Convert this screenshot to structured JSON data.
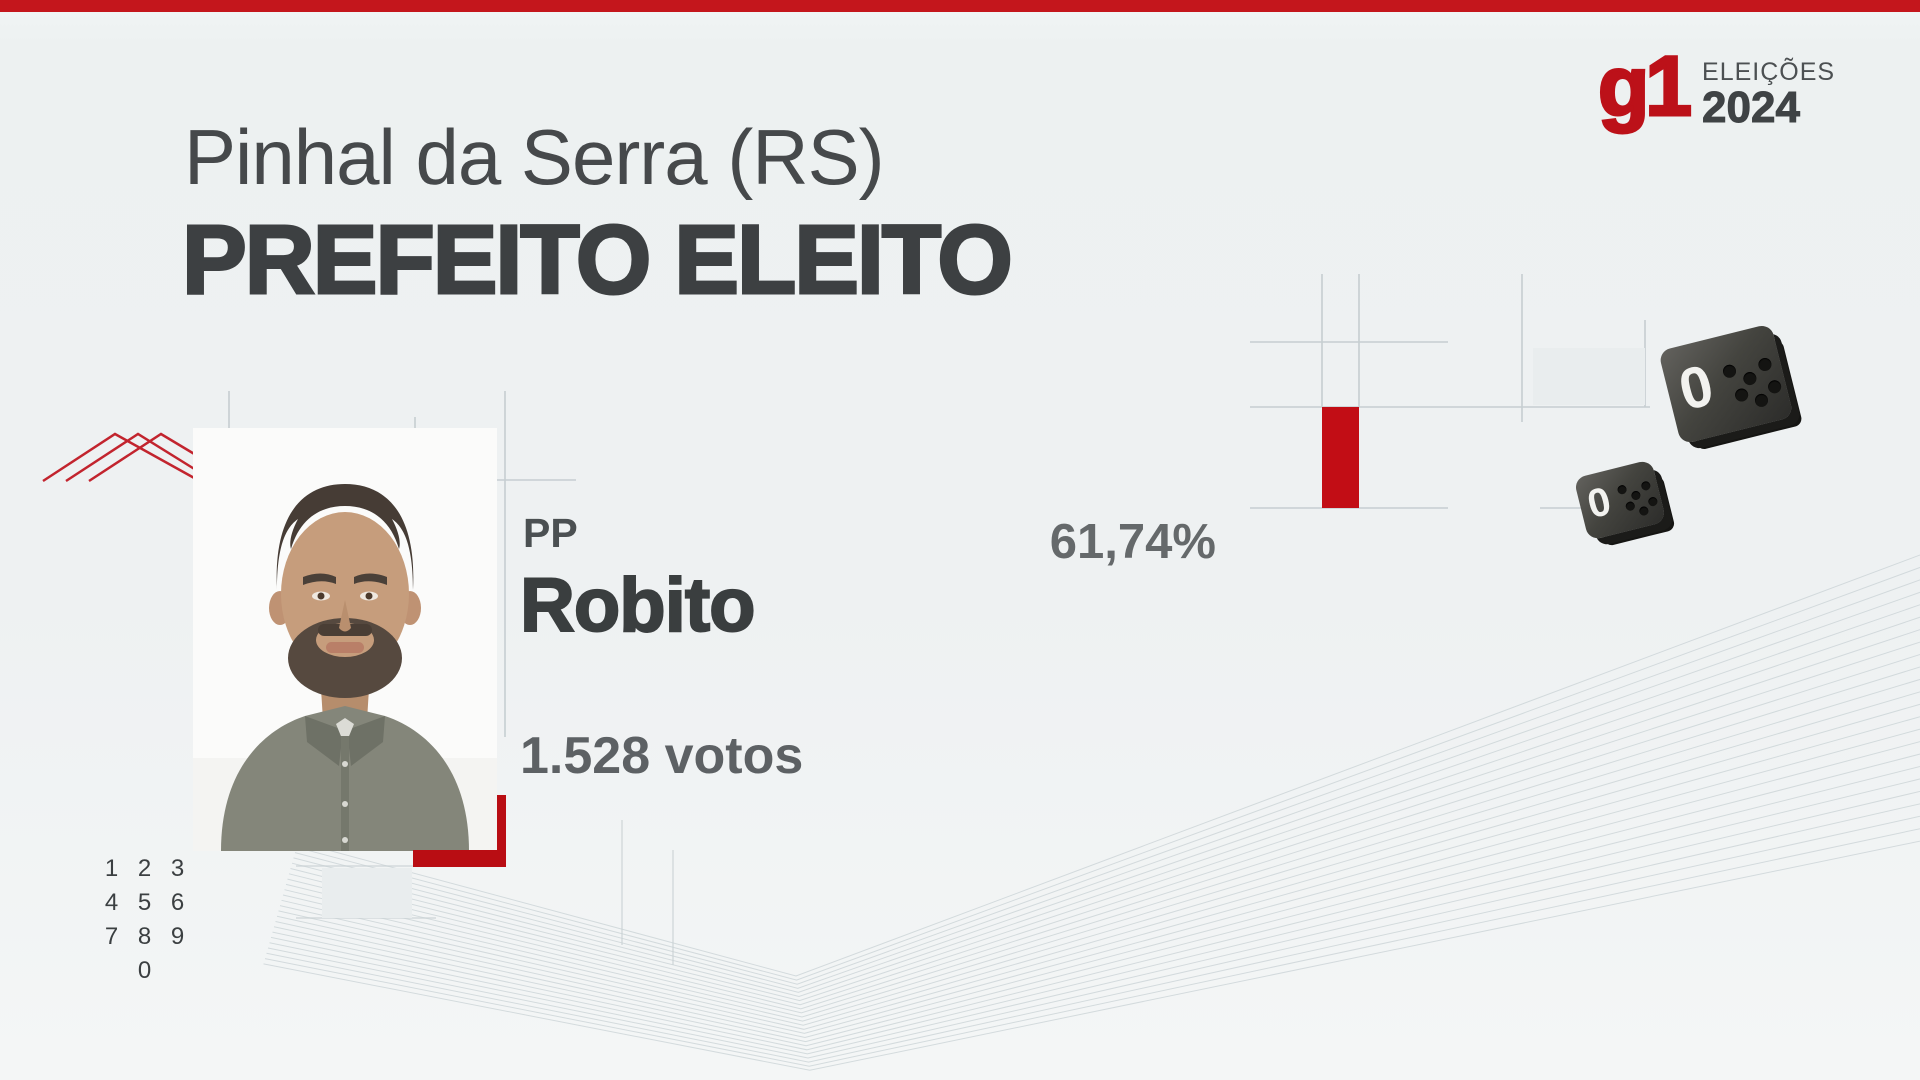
{
  "brand": {
    "logo": "g1",
    "line1": "ELEIÇÕES",
    "line2": "2024"
  },
  "header": {
    "city": "Pinhal da Serra (RS)",
    "headline": "PREFEITO ELEITO"
  },
  "candidate": {
    "party": "PP",
    "name": "Robito",
    "votes": "1.528 votos",
    "percent": "61,74%"
  },
  "chart_data": {
    "type": "bar",
    "categories": [
      "Robito"
    ],
    "values": [
      61.74
    ],
    "unit": "%",
    "bar_color": "#c20d15"
  },
  "keypad": {
    "layout": [
      [
        "1",
        "2",
        "3"
      ],
      [
        "4",
        "5",
        "6"
      ],
      [
        "7",
        "8",
        "9"
      ],
      [
        "",
        "0",
        ""
      ]
    ]
  },
  "keys": {
    "large_label": "0",
    "small_label": "0"
  },
  "colors": {
    "accent_red": "#c20d15",
    "logo_red": "#bc1119",
    "top_bar_red": "#c4161c",
    "text_dark": "#3d4042",
    "text_gray": "#5f6366",
    "background": "#eef1f2",
    "line_gray": "#c6ced1"
  }
}
